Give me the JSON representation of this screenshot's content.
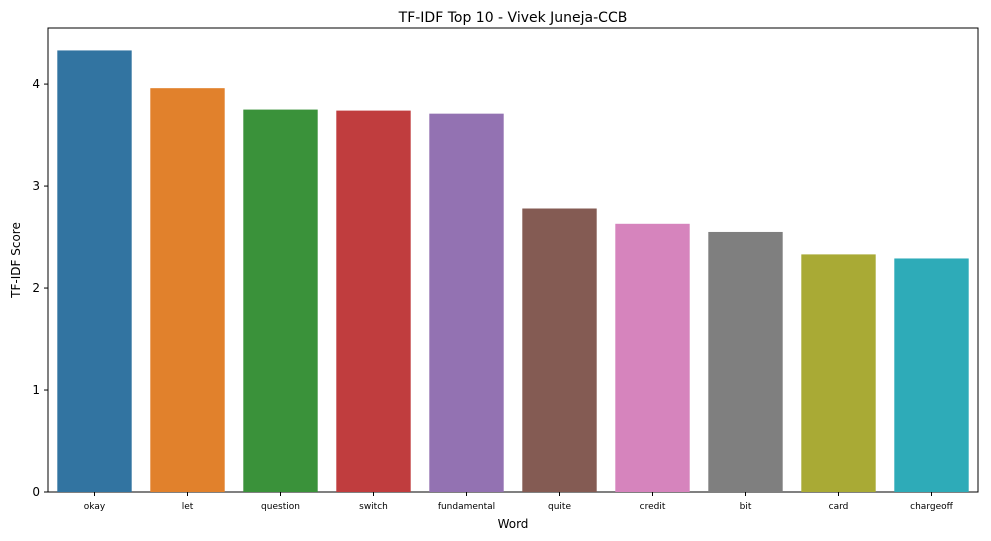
{
  "chart_data": {
    "type": "bar",
    "title": "TF-IDF Top 10 - Vivek Juneja-CCB",
    "xlabel": "Word",
    "ylabel": "TF-IDF Score",
    "categories": [
      "okay",
      "let",
      "question",
      "switch",
      "fundamental",
      "quite",
      "credit",
      "bit",
      "card",
      "chargeoff"
    ],
    "values": [
      4.33,
      3.96,
      3.75,
      3.74,
      3.71,
      2.78,
      2.63,
      2.55,
      2.33,
      2.29
    ],
    "colors": [
      "#3274a1",
      "#e1812c",
      "#3a923a",
      "#c03d3e",
      "#9372b2",
      "#845b53",
      "#d684bd",
      "#7f7f7f",
      "#a9aa35",
      "#2eabb8"
    ],
    "yticks": [
      "0",
      "1",
      "2",
      "3",
      "4"
    ],
    "ylim": [
      0,
      4.55
    ],
    "grid": false,
    "legend": "none"
  }
}
